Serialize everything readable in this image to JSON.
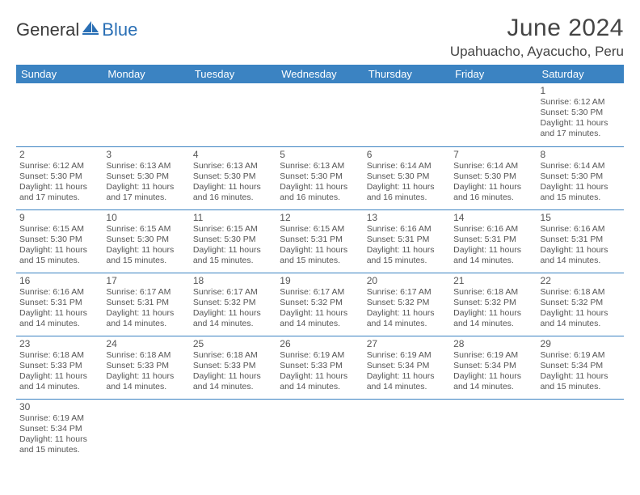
{
  "logo": {
    "general": "General",
    "blue": "Blue",
    "sail_color": "#2a6fb5"
  },
  "title": "June 2024",
  "location": "Upahuacho, Ayacucho, Peru",
  "colors": {
    "header_bg": "#3b83c2",
    "header_text": "#ffffff",
    "cell_border": "#3b83c2",
    "text": "#555555",
    "title_text": "#444444"
  },
  "weekdays": [
    "Sunday",
    "Monday",
    "Tuesday",
    "Wednesday",
    "Thursday",
    "Friday",
    "Saturday"
  ],
  "grid": [
    [
      null,
      null,
      null,
      null,
      null,
      null,
      {
        "n": "1",
        "sunrise": "6:12 AM",
        "sunset": "5:30 PM",
        "dl": "11 hours and 17 minutes."
      }
    ],
    [
      {
        "n": "2",
        "sunrise": "6:12 AM",
        "sunset": "5:30 PM",
        "dl": "11 hours and 17 minutes."
      },
      {
        "n": "3",
        "sunrise": "6:13 AM",
        "sunset": "5:30 PM",
        "dl": "11 hours and 17 minutes."
      },
      {
        "n": "4",
        "sunrise": "6:13 AM",
        "sunset": "5:30 PM",
        "dl": "11 hours and 16 minutes."
      },
      {
        "n": "5",
        "sunrise": "6:13 AM",
        "sunset": "5:30 PM",
        "dl": "11 hours and 16 minutes."
      },
      {
        "n": "6",
        "sunrise": "6:14 AM",
        "sunset": "5:30 PM",
        "dl": "11 hours and 16 minutes."
      },
      {
        "n": "7",
        "sunrise": "6:14 AM",
        "sunset": "5:30 PM",
        "dl": "11 hours and 16 minutes."
      },
      {
        "n": "8",
        "sunrise": "6:14 AM",
        "sunset": "5:30 PM",
        "dl": "11 hours and 15 minutes."
      }
    ],
    [
      {
        "n": "9",
        "sunrise": "6:15 AM",
        "sunset": "5:30 PM",
        "dl": "11 hours and 15 minutes."
      },
      {
        "n": "10",
        "sunrise": "6:15 AM",
        "sunset": "5:30 PM",
        "dl": "11 hours and 15 minutes."
      },
      {
        "n": "11",
        "sunrise": "6:15 AM",
        "sunset": "5:30 PM",
        "dl": "11 hours and 15 minutes."
      },
      {
        "n": "12",
        "sunrise": "6:15 AM",
        "sunset": "5:31 PM",
        "dl": "11 hours and 15 minutes."
      },
      {
        "n": "13",
        "sunrise": "6:16 AM",
        "sunset": "5:31 PM",
        "dl": "11 hours and 15 minutes."
      },
      {
        "n": "14",
        "sunrise": "6:16 AM",
        "sunset": "5:31 PM",
        "dl": "11 hours and 14 minutes."
      },
      {
        "n": "15",
        "sunrise": "6:16 AM",
        "sunset": "5:31 PM",
        "dl": "11 hours and 14 minutes."
      }
    ],
    [
      {
        "n": "16",
        "sunrise": "6:16 AM",
        "sunset": "5:31 PM",
        "dl": "11 hours and 14 minutes."
      },
      {
        "n": "17",
        "sunrise": "6:17 AM",
        "sunset": "5:31 PM",
        "dl": "11 hours and 14 minutes."
      },
      {
        "n": "18",
        "sunrise": "6:17 AM",
        "sunset": "5:32 PM",
        "dl": "11 hours and 14 minutes."
      },
      {
        "n": "19",
        "sunrise": "6:17 AM",
        "sunset": "5:32 PM",
        "dl": "11 hours and 14 minutes."
      },
      {
        "n": "20",
        "sunrise": "6:17 AM",
        "sunset": "5:32 PM",
        "dl": "11 hours and 14 minutes."
      },
      {
        "n": "21",
        "sunrise": "6:18 AM",
        "sunset": "5:32 PM",
        "dl": "11 hours and 14 minutes."
      },
      {
        "n": "22",
        "sunrise": "6:18 AM",
        "sunset": "5:32 PM",
        "dl": "11 hours and 14 minutes."
      }
    ],
    [
      {
        "n": "23",
        "sunrise": "6:18 AM",
        "sunset": "5:33 PM",
        "dl": "11 hours and 14 minutes."
      },
      {
        "n": "24",
        "sunrise": "6:18 AM",
        "sunset": "5:33 PM",
        "dl": "11 hours and 14 minutes."
      },
      {
        "n": "25",
        "sunrise": "6:18 AM",
        "sunset": "5:33 PM",
        "dl": "11 hours and 14 minutes."
      },
      {
        "n": "26",
        "sunrise": "6:19 AM",
        "sunset": "5:33 PM",
        "dl": "11 hours and 14 minutes."
      },
      {
        "n": "27",
        "sunrise": "6:19 AM",
        "sunset": "5:34 PM",
        "dl": "11 hours and 14 minutes."
      },
      {
        "n": "28",
        "sunrise": "6:19 AM",
        "sunset": "5:34 PM",
        "dl": "11 hours and 14 minutes."
      },
      {
        "n": "29",
        "sunrise": "6:19 AM",
        "sunset": "5:34 PM",
        "dl": "11 hours and 15 minutes."
      }
    ],
    [
      {
        "n": "30",
        "sunrise": "6:19 AM",
        "sunset": "5:34 PM",
        "dl": "11 hours and 15 minutes."
      },
      null,
      null,
      null,
      null,
      null,
      null
    ]
  ],
  "labels": {
    "sunrise": "Sunrise:",
    "sunset": "Sunset:",
    "daylight": "Daylight:"
  }
}
